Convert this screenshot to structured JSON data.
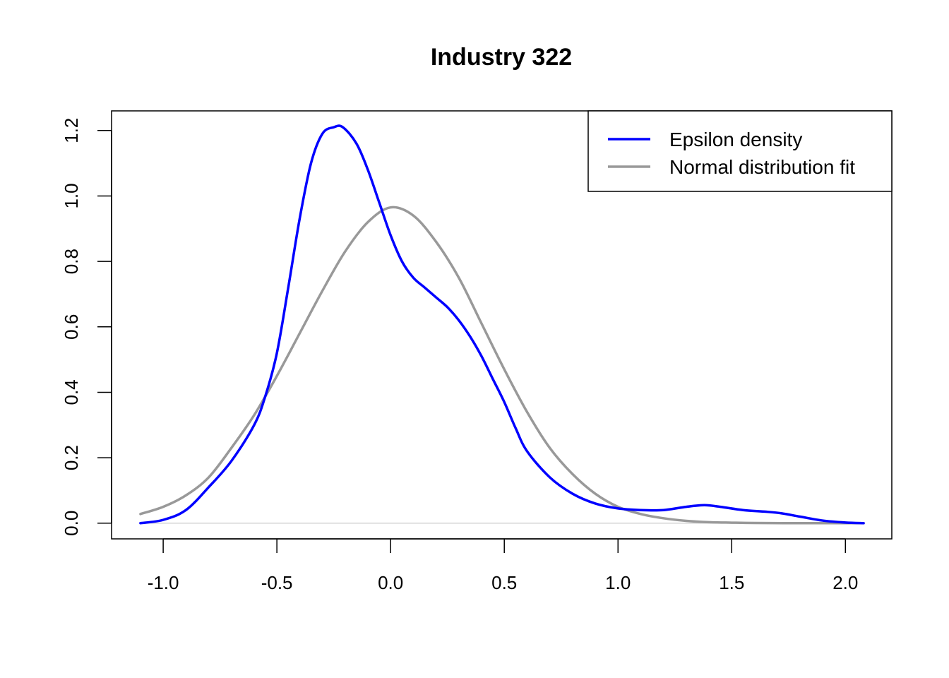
{
  "chart_data": {
    "type": "line",
    "title": "Industry 322",
    "xlabel": "",
    "ylabel": "",
    "xlim": [
      -1.227,
      2.204
    ],
    "ylim": [
      -0.048,
      1.26
    ],
    "x_ticks": [
      -1.0,
      -0.5,
      0.0,
      0.5,
      1.0,
      1.5,
      2.0
    ],
    "x_tick_labels": [
      "-1.0",
      "-0.5",
      "0.0",
      "0.5",
      "1.0",
      "1.5",
      "2.0"
    ],
    "y_ticks": [
      0.0,
      0.2,
      0.4,
      0.6,
      0.8,
      1.0,
      1.2
    ],
    "y_tick_labels": [
      "0.0",
      "0.2",
      "0.4",
      "0.6",
      "0.8",
      "1.0",
      "1.2"
    ],
    "grid": false,
    "legend_position": "top-right",
    "baseline": {
      "y": 0,
      "color": "#d3d3d3"
    },
    "series": [
      {
        "name": "Epsilon density",
        "color": "#0000ff",
        "x": [
          -1.1,
          -1.0,
          -0.9,
          -0.8,
          -0.7,
          -0.6,
          -0.55,
          -0.5,
          -0.45,
          -0.4,
          -0.35,
          -0.3,
          -0.25,
          -0.21,
          -0.15,
          -0.1,
          -0.05,
          0.0,
          0.05,
          0.1,
          0.15,
          0.2,
          0.25,
          0.3,
          0.35,
          0.4,
          0.45,
          0.5,
          0.55,
          0.6,
          0.7,
          0.8,
          0.9,
          1.0,
          1.1,
          1.2,
          1.3,
          1.38,
          1.45,
          1.55,
          1.65,
          1.72,
          1.8,
          1.9,
          2.0,
          2.08
        ],
        "y": [
          0.0,
          0.01,
          0.04,
          0.11,
          0.19,
          0.3,
          0.39,
          0.52,
          0.72,
          0.93,
          1.1,
          1.19,
          1.21,
          1.21,
          1.16,
          1.08,
          0.98,
          0.88,
          0.8,
          0.75,
          0.72,
          0.69,
          0.66,
          0.62,
          0.57,
          0.51,
          0.44,
          0.37,
          0.29,
          0.22,
          0.14,
          0.09,
          0.06,
          0.045,
          0.04,
          0.04,
          0.05,
          0.055,
          0.05,
          0.04,
          0.035,
          0.03,
          0.02,
          0.008,
          0.002,
          0.0
        ]
      },
      {
        "name": "Normal distribution fit",
        "color": "#999999",
        "x": [
          -1.1,
          -1.0,
          -0.9,
          -0.8,
          -0.7,
          -0.6,
          -0.5,
          -0.4,
          -0.3,
          -0.2,
          -0.1,
          0.0,
          0.1,
          0.2,
          0.3,
          0.4,
          0.5,
          0.6,
          0.7,
          0.8,
          0.9,
          1.0,
          1.1,
          1.2,
          1.3,
          1.4,
          1.5,
          1.6,
          1.8,
          2.0,
          2.08
        ],
        "y": [
          0.028,
          0.05,
          0.085,
          0.14,
          0.23,
          0.33,
          0.45,
          0.58,
          0.71,
          0.83,
          0.92,
          0.965,
          0.94,
          0.86,
          0.75,
          0.61,
          0.47,
          0.34,
          0.23,
          0.15,
          0.09,
          0.05,
          0.028,
          0.015,
          0.007,
          0.003,
          0.0015,
          0.0005,
          0.0,
          0.0,
          0.0
        ]
      }
    ]
  }
}
